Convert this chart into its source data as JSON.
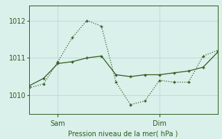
{
  "bg_color": "#daf0eb",
  "line_color": "#2d5a1b",
  "grid_color": "#b8d8d4",
  "xlabel": "Pression niveau de la mer( hPa )",
  "ylim": [
    1009.5,
    1012.4
  ],
  "xlim": [
    0,
    13
  ],
  "yticks": [
    1010,
    1011,
    1012
  ],
  "xtick_positions": [
    2,
    9
  ],
  "xtick_labels": [
    "Sam",
    "Dim"
  ],
  "line1_x": [
    0,
    1,
    2,
    3,
    4,
    5,
    6,
    7,
    8,
    9,
    10,
    11,
    12,
    13
  ],
  "line1_y": [
    1010.25,
    1010.45,
    1010.85,
    1010.9,
    1011.0,
    1011.05,
    1010.55,
    1010.5,
    1010.55,
    1010.55,
    1010.6,
    1010.65,
    1010.75,
    1011.15
  ],
  "line2_x": [
    0,
    1,
    2,
    3,
    4,
    5,
    6,
    7,
    8,
    9,
    10,
    11,
    12,
    13
  ],
  "line2_y": [
    1010.2,
    1010.3,
    1010.9,
    1011.55,
    1012.0,
    1011.85,
    1010.35,
    1009.75,
    1009.85,
    1010.4,
    1010.35,
    1010.35,
    1011.05,
    1011.2
  ]
}
